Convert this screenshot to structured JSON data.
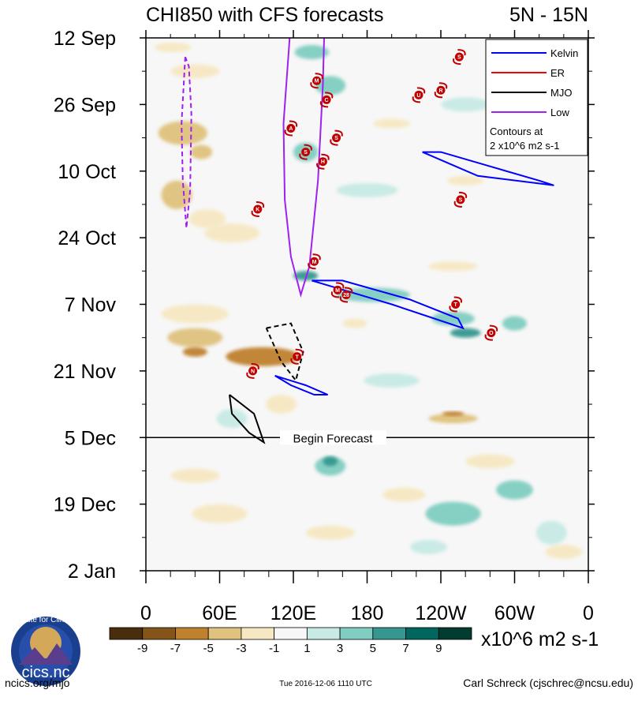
{
  "chart_data": {
    "type": "heatmap",
    "title": "CHI850 with CFS forecasts",
    "region": "5N - 15N",
    "x_ticks": [
      "0",
      "60E",
      "120E",
      "180",
      "120W",
      "60W",
      "0"
    ],
    "y_ticks": [
      "12 Sep",
      "26 Sep",
      "10 Oct",
      "24 Oct",
      "7 Nov",
      "21 Nov",
      "5 Dec",
      "19 Dec",
      "2 Jan"
    ],
    "x_range_deg_east": [
      0,
      360
    ],
    "y_range_days_from_12sep": [
      0,
      112
    ],
    "forecast_start_day": 84,
    "forecast_label": "Begin Forecast",
    "colorbar": {
      "labels": [
        "-9",
        "-7",
        "-5",
        "-3",
        "-1",
        "1",
        "3",
        "5",
        "7",
        "9"
      ],
      "colors": [
        "#4a2d0c",
        "#845419",
        "#bf812d",
        "#dfc27d",
        "#f6e8c3",
        "#f7f7f7",
        "#c7eae5",
        "#80cdc1",
        "#35978f",
        "#01665e",
        "#003c30"
      ],
      "units": "x10^6 m2 s-1"
    },
    "legend": [
      {
        "name": "Kelvin",
        "color": "#0000ff"
      },
      {
        "name": "ER",
        "color": "#ff0000"
      },
      {
        "name": "MJO",
        "color": "#000000"
      },
      {
        "name": "Low",
        "color": "#a020f0"
      }
    ],
    "legend_note": "Contours at",
    "legend_note2": "2 x10^6 m2 s-1",
    "anomaly_blobs": [
      {
        "lon": 22,
        "day": 2,
        "w": 30,
        "h": 2,
        "v": -3
      },
      {
        "lon": 40,
        "day": 7,
        "w": 40,
        "h": 3,
        "v": -2
      },
      {
        "lon": 30,
        "day": 20,
        "w": 40,
        "h": 5,
        "v": -4
      },
      {
        "lon": 45,
        "day": 24,
        "w": 18,
        "h": 3,
        "v": -5
      },
      {
        "lon": 25,
        "day": 33,
        "w": 25,
        "h": 6,
        "v": -5
      },
      {
        "lon": 50,
        "day": 38,
        "w": 30,
        "h": 4,
        "v": -3
      },
      {
        "lon": 70,
        "day": 41,
        "w": 45,
        "h": 4,
        "v": -3
      },
      {
        "lon": 40,
        "day": 58,
        "w": 55,
        "h": 4,
        "v": -3
      },
      {
        "lon": 40,
        "day": 63,
        "w": 45,
        "h": 4,
        "v": -5
      },
      {
        "lon": 95,
        "day": 67,
        "w": 60,
        "h": 4,
        "v": -6
      },
      {
        "lon": 40,
        "day": 66,
        "w": 20,
        "h": 2,
        "v": -7
      },
      {
        "lon": 170,
        "day": 60,
        "w": 20,
        "h": 2,
        "v": -2
      },
      {
        "lon": 200,
        "day": 18,
        "w": 30,
        "h": 2,
        "v": -2
      },
      {
        "lon": 260,
        "day": 30,
        "w": 30,
        "h": 2,
        "v": -3
      },
      {
        "lon": 250,
        "day": 48,
        "w": 40,
        "h": 2,
        "v": -2
      },
      {
        "lon": 250,
        "day": 80,
        "w": 40,
        "h": 2,
        "v": -4
      },
      {
        "lon": 250,
        "day": 79,
        "w": 18,
        "h": 1,
        "v": -6
      },
      {
        "lon": 110,
        "day": 77,
        "w": 25,
        "h": 4,
        "v": -2
      },
      {
        "lon": 40,
        "day": 92,
        "w": 40,
        "h": 3,
        "v": -3
      },
      {
        "lon": 60,
        "day": 100,
        "w": 45,
        "h": 4,
        "v": -2
      },
      {
        "lon": 150,
        "day": 104,
        "w": 40,
        "h": 3,
        "v": -2
      },
      {
        "lon": 210,
        "day": 96,
        "w": 35,
        "h": 3,
        "v": -2
      },
      {
        "lon": 280,
        "day": 89,
        "w": 40,
        "h": 3,
        "v": -2
      },
      {
        "lon": 340,
        "day": 108,
        "w": 30,
        "h": 3,
        "v": -2
      },
      {
        "lon": 135,
        "day": 3,
        "w": 28,
        "h": 3,
        "v": 4
      },
      {
        "lon": 150,
        "day": 10,
        "w": 25,
        "h": 4,
        "v": 3
      },
      {
        "lon": 130,
        "day": 24,
        "w": 20,
        "h": 4,
        "v": 3
      },
      {
        "lon": 180,
        "day": 32,
        "w": 50,
        "h": 3,
        "v": 2
      },
      {
        "lon": 260,
        "day": 14,
        "w": 40,
        "h": 3,
        "v": 2
      },
      {
        "lon": 300,
        "day": 4,
        "w": 25,
        "h": 2,
        "v": 3
      },
      {
        "lon": 130,
        "day": 50,
        "w": 20,
        "h": 2,
        "v": 5
      },
      {
        "lon": 185,
        "day": 54,
        "w": 60,
        "h": 3,
        "v": 3
      },
      {
        "lon": 250,
        "day": 59,
        "w": 35,
        "h": 3,
        "v": 4
      },
      {
        "lon": 260,
        "day": 62,
        "w": 25,
        "h": 2,
        "v": 5
      },
      {
        "lon": 300,
        "day": 60,
        "w": 20,
        "h": 3,
        "v": 3
      },
      {
        "lon": 200,
        "day": 72,
        "w": 45,
        "h": 3,
        "v": 2
      },
      {
        "lon": 70,
        "day": 80,
        "w": 25,
        "h": 4,
        "v": 2
      },
      {
        "lon": 150,
        "day": 90,
        "w": 25,
        "h": 4,
        "v": 3
      },
      {
        "lon": 150,
        "day": 89,
        "w": 12,
        "h": 2,
        "v": 5
      },
      {
        "lon": 250,
        "day": 100,
        "w": 45,
        "h": 5,
        "v": 3
      },
      {
        "lon": 300,
        "day": 95,
        "w": 30,
        "h": 4,
        "v": 3
      },
      {
        "lon": 330,
        "day": 104,
        "w": 25,
        "h": 5,
        "v": 2
      },
      {
        "lon": 230,
        "day": 107,
        "w": 30,
        "h": 3,
        "v": 2
      }
    ],
    "contours": [
      {
        "wave": "Low",
        "color": "#a020f0",
        "dash": false,
        "points": [
          [
            117,
            0
          ],
          [
            112,
            18
          ],
          [
            113,
            34
          ],
          [
            118,
            46
          ],
          [
            126,
            54
          ],
          [
            133,
            48
          ],
          [
            140,
            30
          ],
          [
            144,
            10
          ],
          [
            145,
            0
          ]
        ]
      },
      {
        "wave": "Low",
        "color": "#a020f0",
        "dash": true,
        "points": [
          [
            32,
            4
          ],
          [
            29,
            18
          ],
          [
            30,
            30
          ],
          [
            33,
            40
          ],
          [
            36,
            32
          ],
          [
            37,
            16
          ],
          [
            35,
            6
          ],
          [
            32,
            4
          ]
        ]
      },
      {
        "wave": "Kelvin",
        "color": "#0000ff",
        "dash": false,
        "points": [
          [
            135,
            51
          ],
          [
            200,
            56
          ],
          [
            258,
            61
          ],
          [
            254,
            59
          ],
          [
            215,
            55
          ],
          [
            160,
            51
          ],
          [
            135,
            51
          ]
        ]
      },
      {
        "wave": "Kelvin",
        "color": "#0000ff",
        "dash": false,
        "points": [
          [
            225,
            24
          ],
          [
            270,
            29
          ],
          [
            332,
            31
          ],
          [
            320,
            30
          ],
          [
            280,
            27
          ],
          [
            240,
            24
          ],
          [
            225,
            24
          ]
        ]
      },
      {
        "wave": "Kelvin",
        "color": "#0000ff",
        "dash": false,
        "points": [
          [
            105,
            71
          ],
          [
            130,
            73
          ],
          [
            148,
            75
          ],
          [
            137,
            75
          ],
          [
            118,
            73
          ],
          [
            105,
            71
          ]
        ]
      },
      {
        "wave": "MJO",
        "color": "#000000",
        "dash": true,
        "points": [
          [
            98,
            61
          ],
          [
            118,
            60
          ],
          [
            128,
            66
          ],
          [
            122,
            72
          ],
          [
            110,
            68
          ],
          [
            98,
            61
          ]
        ]
      },
      {
        "wave": "MJO",
        "color": "#000000",
        "dash": false,
        "points": [
          [
            68,
            75
          ],
          [
            88,
            79
          ],
          [
            96,
            85
          ],
          [
            84,
            83
          ],
          [
            70,
            79
          ],
          [
            68,
            75
          ]
        ]
      }
    ],
    "tropical_cyclones": [
      {
        "letter": "M",
        "lon": 139,
        "day": 9
      },
      {
        "letter": "C",
        "lon": 147,
        "day": 13
      },
      {
        "letter": "A",
        "lon": 118,
        "day": 19
      },
      {
        "letter": "S",
        "lon": 155,
        "day": 21
      },
      {
        "letter": "S",
        "lon": 130,
        "day": 24
      },
      {
        "letter": "H",
        "lon": 144,
        "day": 26
      },
      {
        "letter": "K",
        "lon": 91,
        "day": 36
      },
      {
        "letter": "M",
        "lon": 137,
        "day": 47
      },
      {
        "letter": "M",
        "lon": 156,
        "day": 53
      },
      {
        "letter": "28",
        "lon": 163,
        "day": 54
      },
      {
        "letter": "U",
        "lon": 222,
        "day": 12
      },
      {
        "letter": "R",
        "lon": 240,
        "day": 11
      },
      {
        "letter": "S",
        "lon": 255,
        "day": 4
      },
      {
        "letter": "S",
        "lon": 256,
        "day": 34
      },
      {
        "letter": "T",
        "lon": 252,
        "day": 56
      },
      {
        "letter": "O",
        "lon": 281,
        "day": 62
      },
      {
        "letter": "T",
        "lon": 123,
        "day": 67
      },
      {
        "letter": "N",
        "lon": 87,
        "day": 70
      }
    ]
  },
  "footer": {
    "left": "ncics.org/mjo",
    "center": "Tue 2016-12-06 1110 UTC",
    "right": "Carl Schreck (cjschrec@ncsu.edu)"
  },
  "logo": {
    "text": "cics.nc",
    "ring_text": "Cooperative Institute for Climate and Satellites"
  }
}
